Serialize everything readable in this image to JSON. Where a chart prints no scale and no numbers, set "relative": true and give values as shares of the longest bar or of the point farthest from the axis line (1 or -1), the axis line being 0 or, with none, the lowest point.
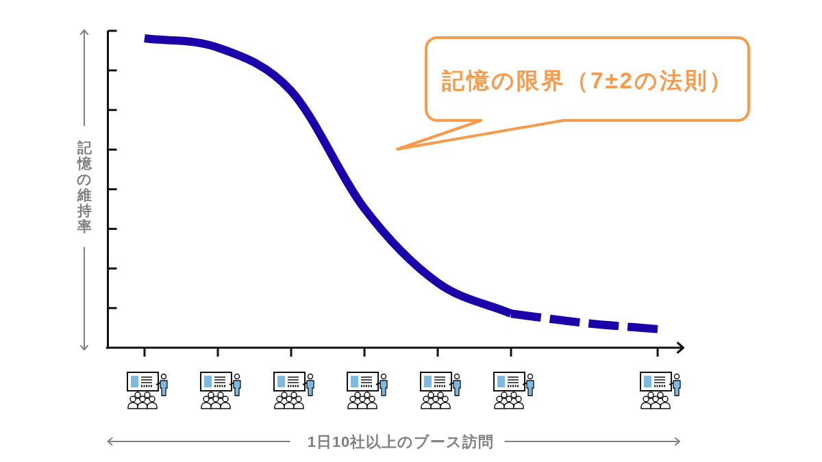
{
  "chart_data": {
    "type": "line",
    "relative": true,
    "ylabel": "記憶の維持率",
    "annotations": [
      "記憶の限界（7±2の法則）",
      "1日10社以上のブース訪問"
    ],
    "categories": [
      null,
      null,
      null,
      null,
      null,
      null,
      null,
      null
    ],
    "series": [
      {
        "color": "#1a00a8",
        "line_style": "solid",
        "values": [
          1.0,
          0.97,
          0.83,
          0.45,
          0.21,
          0.11,
          null,
          null
        ]
      },
      {
        "color": "#1a00a8",
        "line_style": "dashed",
        "values": [
          null,
          null,
          null,
          null,
          null,
          0.11,
          0.08,
          0.06
        ]
      }
    ]
  }
}
